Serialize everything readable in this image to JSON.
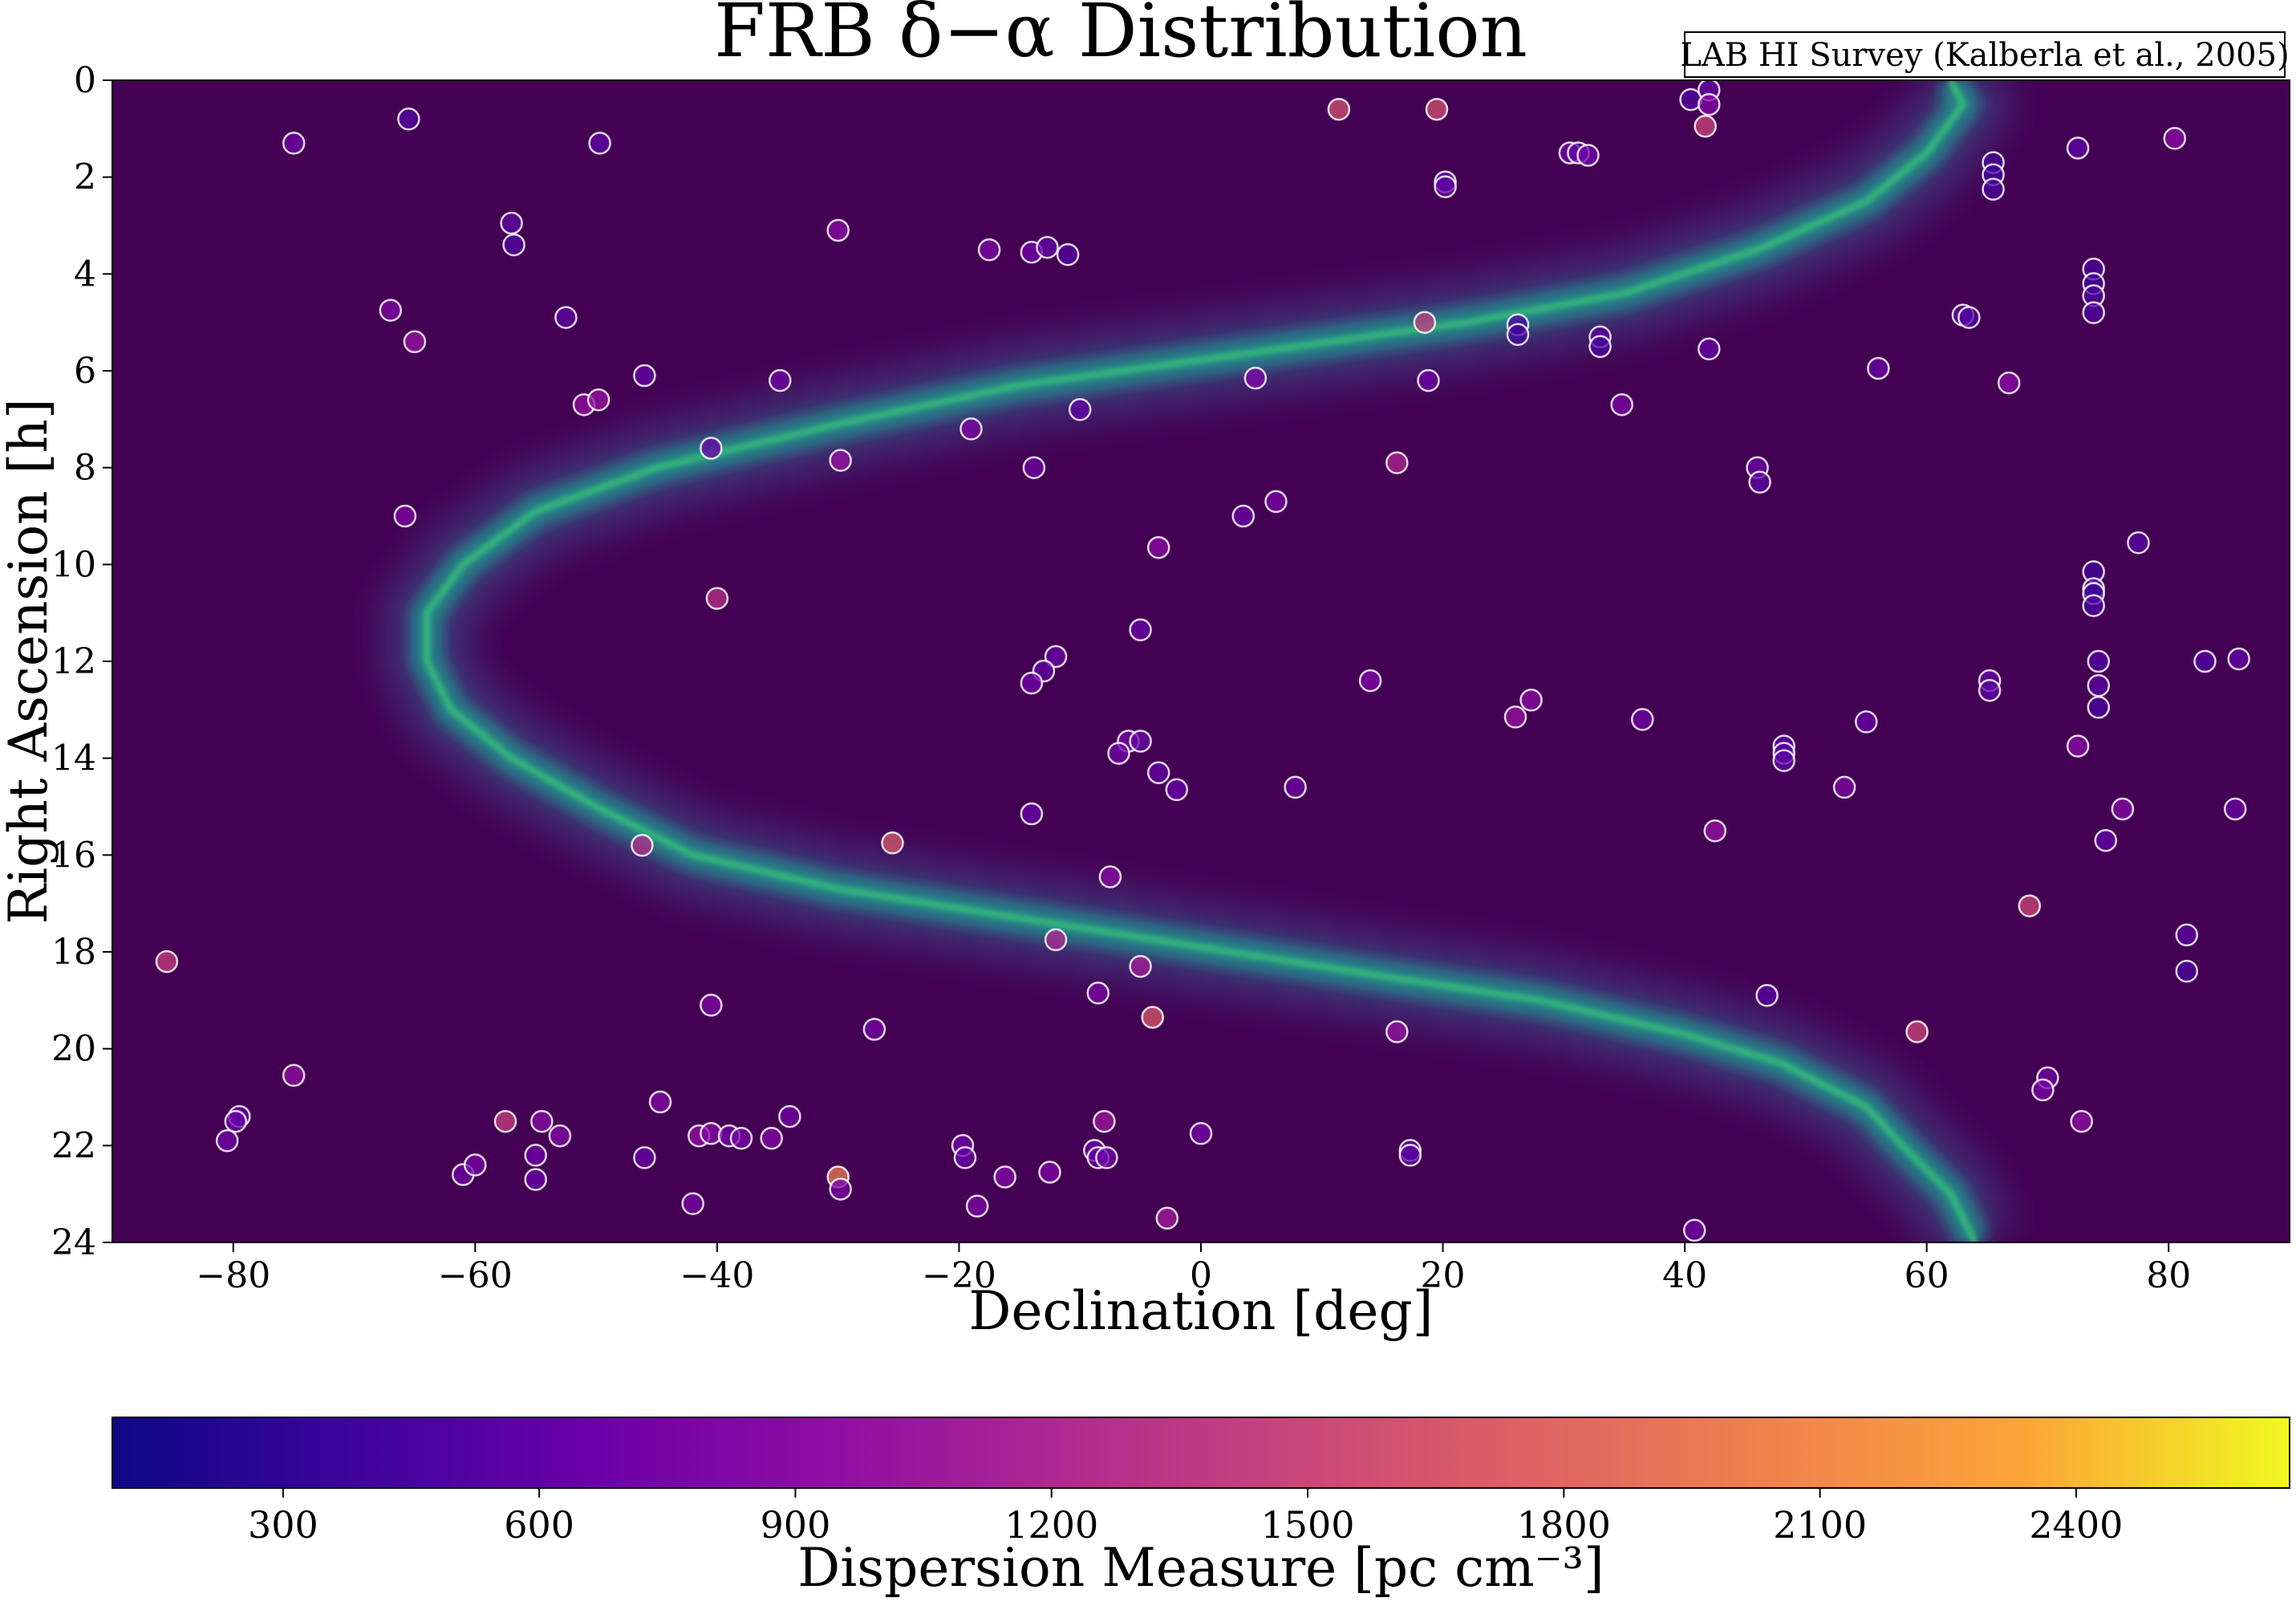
{
  "chart_data": {
    "type": "scatter",
    "title": "FRB δ−α Distribution",
    "xlabel": "Declination [deg]",
    "ylabel": "Right Ascension [h]",
    "xlim": [
      -90,
      90
    ],
    "ylim": [
      24,
      0
    ],
    "y_inverted": true,
    "x_ticks": [
      -80,
      -60,
      -40,
      -20,
      0,
      20,
      40,
      60,
      80
    ],
    "x_tick_labels": [
      "−80",
      "−60",
      "−40",
      "−20",
      "0",
      "20",
      "40",
      "60",
      "80"
    ],
    "y_ticks": [
      0,
      2,
      4,
      6,
      8,
      10,
      12,
      14,
      16,
      18,
      20,
      22,
      24
    ],
    "y_tick_labels": [
      "0",
      "2",
      "4",
      "6",
      "8",
      "10",
      "12",
      "14",
      "16",
      "18",
      "20",
      "22",
      "24"
    ],
    "grid": false,
    "annotation": "LAB HI Survey (Kalberla et al., 2005)",
    "background": {
      "description_source": "LAB HI Survey",
      "colormap": "viridis",
      "base_color": "#440154",
      "galactic_plane": [
        [
          62,
          0
        ],
        [
          63,
          0.5
        ],
        [
          60,
          1.5
        ],
        [
          55,
          2.5
        ],
        [
          46,
          3.5
        ],
        [
          35,
          4.4
        ],
        [
          22,
          5.0
        ],
        [
          5,
          5.6
        ],
        [
          -15,
          6.3
        ],
        [
          -30,
          7.1
        ],
        [
          -45,
          8.0
        ],
        [
          -55,
          8.9
        ],
        [
          -61,
          10.0
        ],
        [
          -64,
          11.0
        ],
        [
          -64,
          12.0
        ],
        [
          -62,
          13.0
        ],
        [
          -57,
          14.0
        ],
        [
          -50,
          15.0
        ],
        [
          -42,
          16.0
        ],
        [
          -30,
          16.7
        ],
        [
          -15,
          17.3
        ],
        [
          0,
          17.9
        ],
        [
          15,
          18.5
        ],
        [
          28,
          19.0
        ],
        [
          40,
          19.7
        ],
        [
          48,
          20.3
        ],
        [
          55,
          21.2
        ],
        [
          58,
          22.0
        ],
        [
          62,
          23.0
        ],
        [
          64,
          24.0
        ]
      ]
    },
    "colorbar": {
      "label": "Dispersion Measure [pc cm⁻³]",
      "colormap": "plasma",
      "range": [
        100,
        2650
      ],
      "ticks": [
        300,
        600,
        900,
        1200,
        1500,
        1800,
        2100,
        2400
      ],
      "tick_labels": [
        "300",
        "600",
        "900",
        "1200",
        "1500",
        "1800",
        "2100",
        "2400"
      ],
      "orientation": "horizontal"
    },
    "marker_edge_color": "#ffffff",
    "points": [
      {
        "dec": -65.5,
        "ra": 0.8,
        "dm": 500
      },
      {
        "dec": -75,
        "ra": 1.3,
        "dm": 700
      },
      {
        "dec": -49.7,
        "ra": 1.3,
        "dm": 600
      },
      {
        "dec": 11.4,
        "ra": 0.6,
        "dm": 1600
      },
      {
        "dec": 19.5,
        "ra": 0.6,
        "dm": 1600
      },
      {
        "dec": 40.5,
        "ra": 0.4,
        "dm": 500
      },
      {
        "dec": 42,
        "ra": 0.2,
        "dm": 650
      },
      {
        "dec": 42,
        "ra": 0.5,
        "dm": 850
      },
      {
        "dec": 41.7,
        "ra": 0.95,
        "dm": 1500
      },
      {
        "dec": 80.5,
        "ra": 1.2,
        "dm": 900
      },
      {
        "dec": 72.5,
        "ra": 1.4,
        "dm": 600
      },
      {
        "dec": 30.5,
        "ra": 1.5,
        "dm": 700
      },
      {
        "dec": 31.2,
        "ra": 1.5,
        "dm": 600
      },
      {
        "dec": 32,
        "ra": 1.55,
        "dm": 700
      },
      {
        "dec": 65.5,
        "ra": 1.7,
        "dm": 450
      },
      {
        "dec": 65.5,
        "ra": 1.95,
        "dm": 400
      },
      {
        "dec": 65.5,
        "ra": 2.25,
        "dm": 450
      },
      {
        "dec": 20.2,
        "ra": 2.1,
        "dm": 650
      },
      {
        "dec": 20.2,
        "ra": 2.2,
        "dm": 600
      },
      {
        "dec": -57,
        "ra": 2.95,
        "dm": 600
      },
      {
        "dec": -56.8,
        "ra": 3.4,
        "dm": 500
      },
      {
        "dec": -30,
        "ra": 3.1,
        "dm": 900
      },
      {
        "dec": -17.5,
        "ra": 3.5,
        "dm": 800
      },
      {
        "dec": -14,
        "ra": 3.55,
        "dm": 700
      },
      {
        "dec": -12.7,
        "ra": 3.45,
        "dm": 600
      },
      {
        "dec": -11,
        "ra": 3.6,
        "dm": 500
      },
      {
        "dec": 73.8,
        "ra": 3.9,
        "dm": 450
      },
      {
        "dec": 73.8,
        "ra": 4.2,
        "dm": 400
      },
      {
        "dec": 73.8,
        "ra": 4.45,
        "dm": 450
      },
      {
        "dec": 73.8,
        "ra": 4.8,
        "dm": 500
      },
      {
        "dec": -67,
        "ra": 4.75,
        "dm": 800
      },
      {
        "dec": -52.5,
        "ra": 4.9,
        "dm": 600
      },
      {
        "dec": -65,
        "ra": 5.4,
        "dm": 1000
      },
      {
        "dec": 18.5,
        "ra": 5.0,
        "dm": 1400
      },
      {
        "dec": 26.2,
        "ra": 5.05,
        "dm": 450
      },
      {
        "dec": 26.2,
        "ra": 5.25,
        "dm": 400
      },
      {
        "dec": 33,
        "ra": 5.3,
        "dm": 550
      },
      {
        "dec": 33,
        "ra": 5.5,
        "dm": 450
      },
      {
        "dec": 42,
        "ra": 5.55,
        "dm": 650
      },
      {
        "dec": 63,
        "ra": 4.85,
        "dm": 550
      },
      {
        "dec": 63.5,
        "ra": 4.9,
        "dm": 500
      },
      {
        "dec": -46,
        "ra": 6.1,
        "dm": 600
      },
      {
        "dec": -34.8,
        "ra": 6.2,
        "dm": 700
      },
      {
        "dec": 4.5,
        "ra": 6.15,
        "dm": 800
      },
      {
        "dec": 18.8,
        "ra": 6.2,
        "dm": 700
      },
      {
        "dec": 56,
        "ra": 5.95,
        "dm": 650
      },
      {
        "dec": 66.8,
        "ra": 6.25,
        "dm": 900
      },
      {
        "dec": -51,
        "ra": 6.7,
        "dm": 950
      },
      {
        "dec": -49.8,
        "ra": 6.6,
        "dm": 1000
      },
      {
        "dec": -10,
        "ra": 6.8,
        "dm": 600
      },
      {
        "dec": 34.8,
        "ra": 6.7,
        "dm": 800
      },
      {
        "dec": -40.5,
        "ra": 7.6,
        "dm": 650
      },
      {
        "dec": -19,
        "ra": 7.2,
        "dm": 800
      },
      {
        "dec": -29.8,
        "ra": 7.85,
        "dm": 1000
      },
      {
        "dec": -13.8,
        "ra": 8.0,
        "dm": 700
      },
      {
        "dec": 16.2,
        "ra": 7.9,
        "dm": 1200
      },
      {
        "dec": 46,
        "ra": 8.0,
        "dm": 650
      },
      {
        "dec": 46.2,
        "ra": 8.3,
        "dm": 550
      },
      {
        "dec": -65.8,
        "ra": 9.0,
        "dm": 800
      },
      {
        "dec": 3.5,
        "ra": 9.0,
        "dm": 650
      },
      {
        "dec": 6.2,
        "ra": 8.7,
        "dm": 750
      },
      {
        "dec": -3.5,
        "ra": 9.65,
        "dm": 900
      },
      {
        "dec": 77.5,
        "ra": 9.55,
        "dm": 550
      },
      {
        "dec": -40,
        "ra": 10.7,
        "dm": 1300
      },
      {
        "dec": 73.8,
        "ra": 10.15,
        "dm": 400
      },
      {
        "dec": 73.8,
        "ra": 10.5,
        "dm": 350
      },
      {
        "dec": 73.8,
        "ra": 10.6,
        "dm": 400
      },
      {
        "dec": 73.8,
        "ra": 10.85,
        "dm": 450
      },
      {
        "dec": -5,
        "ra": 11.35,
        "dm": 650
      },
      {
        "dec": -12,
        "ra": 11.9,
        "dm": 650
      },
      {
        "dec": -13,
        "ra": 12.2,
        "dm": 600
      },
      {
        "dec": -14,
        "ra": 12.45,
        "dm": 700
      },
      {
        "dec": 14,
        "ra": 12.4,
        "dm": 800
      },
      {
        "dec": 74.2,
        "ra": 12.0,
        "dm": 500
      },
      {
        "dec": 74.2,
        "ra": 12.5,
        "dm": 550
      },
      {
        "dec": 74.2,
        "ra": 12.95,
        "dm": 450
      },
      {
        "dec": 83,
        "ra": 12.0,
        "dm": 500
      },
      {
        "dec": 85.8,
        "ra": 11.95,
        "dm": 600
      },
      {
        "dec": 65.2,
        "ra": 12.4,
        "dm": 650
      },
      {
        "dec": 65.2,
        "ra": 12.6,
        "dm": 550
      },
      {
        "dec": 26,
        "ra": 13.15,
        "dm": 1000
      },
      {
        "dec": 27.3,
        "ra": 12.8,
        "dm": 900
      },
      {
        "dec": 36.5,
        "ra": 13.2,
        "dm": 700
      },
      {
        "dec": 55,
        "ra": 13.25,
        "dm": 650
      },
      {
        "dec": -6,
        "ra": 13.65,
        "dm": 750
      },
      {
        "dec": -5,
        "ra": 13.65,
        "dm": 650
      },
      {
        "dec": -6.8,
        "ra": 13.9,
        "dm": 700
      },
      {
        "dec": 48.2,
        "ra": 13.75,
        "dm": 550
      },
      {
        "dec": 48.2,
        "ra": 13.9,
        "dm": 500
      },
      {
        "dec": 48.2,
        "ra": 14.05,
        "dm": 550
      },
      {
        "dec": 72.5,
        "ra": 13.75,
        "dm": 900
      },
      {
        "dec": -3.5,
        "ra": 14.3,
        "dm": 600
      },
      {
        "dec": -2,
        "ra": 14.65,
        "dm": 650
      },
      {
        "dec": 7.8,
        "ra": 14.6,
        "dm": 700
      },
      {
        "dec": 53.2,
        "ra": 14.6,
        "dm": 800
      },
      {
        "dec": -14,
        "ra": 15.15,
        "dm": 650
      },
      {
        "dec": 76.2,
        "ra": 15.05,
        "dm": 850
      },
      {
        "dec": 85.5,
        "ra": 15.05,
        "dm": 650
      },
      {
        "dec": 74.8,
        "ra": 15.7,
        "dm": 600
      },
      {
        "dec": -46.2,
        "ra": 15.8,
        "dm": 1250
      },
      {
        "dec": -25.5,
        "ra": 15.75,
        "dm": 1700
      },
      {
        "dec": 42.5,
        "ra": 15.5,
        "dm": 1000
      },
      {
        "dec": -7.5,
        "ra": 16.45,
        "dm": 900
      },
      {
        "dec": 68.5,
        "ra": 17.05,
        "dm": 1500
      },
      {
        "dec": 81.5,
        "ra": 17.65,
        "dm": 550
      },
      {
        "dec": 81.5,
        "ra": 18.4,
        "dm": 450
      },
      {
        "dec": -85.5,
        "ra": 18.2,
        "dm": 1450
      },
      {
        "dec": -12,
        "ra": 17.75,
        "dm": 1200
      },
      {
        "dec": -5,
        "ra": 18.3,
        "dm": 1100
      },
      {
        "dec": -40.5,
        "ra": 19.1,
        "dm": 800
      },
      {
        "dec": -8.5,
        "ra": 18.85,
        "dm": 800
      },
      {
        "dec": -4,
        "ra": 19.35,
        "dm": 1700
      },
      {
        "dec": 46.8,
        "ra": 18.9,
        "dm": 550
      },
      {
        "dec": -27,
        "ra": 19.6,
        "dm": 750
      },
      {
        "dec": 16.2,
        "ra": 19.65,
        "dm": 1000
      },
      {
        "dec": 59.2,
        "ra": 19.65,
        "dm": 1500
      },
      {
        "dec": -75,
        "ra": 20.55,
        "dm": 950
      },
      {
        "dec": 70,
        "ra": 20.6,
        "dm": 700
      },
      {
        "dec": 69.6,
        "ra": 20.85,
        "dm": 750
      },
      {
        "dec": -44.7,
        "ra": 21.1,
        "dm": 850
      },
      {
        "dec": -79.5,
        "ra": 21.4,
        "dm": 600
      },
      {
        "dec": -79.8,
        "ra": 21.5,
        "dm": 650
      },
      {
        "dec": -80.5,
        "ra": 21.9,
        "dm": 700
      },
      {
        "dec": -57.5,
        "ra": 21.5,
        "dm": 1450
      },
      {
        "dec": -54.5,
        "ra": 21.5,
        "dm": 900
      },
      {
        "dec": -53,
        "ra": 21.8,
        "dm": 850
      },
      {
        "dec": -55,
        "ra": 22.2,
        "dm": 700
      },
      {
        "dec": -55,
        "ra": 22.7,
        "dm": 650
      },
      {
        "dec": -61,
        "ra": 22.6,
        "dm": 700
      },
      {
        "dec": -60,
        "ra": 22.4,
        "dm": 750
      },
      {
        "dec": -46,
        "ra": 22.25,
        "dm": 650
      },
      {
        "dec": -41.5,
        "ra": 21.8,
        "dm": 950
      },
      {
        "dec": -40.5,
        "ra": 21.75,
        "dm": 850
      },
      {
        "dec": -39,
        "ra": 21.8,
        "dm": 700
      },
      {
        "dec": -38,
        "ra": 21.85,
        "dm": 750
      },
      {
        "dec": -35.5,
        "ra": 21.85,
        "dm": 850
      },
      {
        "dec": -34,
        "ra": 21.4,
        "dm": 700
      },
      {
        "dec": -42,
        "ra": 23.2,
        "dm": 750
      },
      {
        "dec": -30,
        "ra": 22.65,
        "dm": 2000
      },
      {
        "dec": -29.8,
        "ra": 22.9,
        "dm": 750
      },
      {
        "dec": -19.7,
        "ra": 22.0,
        "dm": 700
      },
      {
        "dec": -19.5,
        "ra": 22.25,
        "dm": 650
      },
      {
        "dec": -16.2,
        "ra": 22.65,
        "dm": 850
      },
      {
        "dec": -18.5,
        "ra": 23.25,
        "dm": 800
      },
      {
        "dec": -12.5,
        "ra": 22.55,
        "dm": 800
      },
      {
        "dec": -8.8,
        "ra": 22.1,
        "dm": 650
      },
      {
        "dec": -8.5,
        "ra": 22.25,
        "dm": 600
      },
      {
        "dec": -7.8,
        "ra": 22.25,
        "dm": 700
      },
      {
        "dec": -8,
        "ra": 21.5,
        "dm": 1050
      },
      {
        "dec": 0,
        "ra": 21.75,
        "dm": 750
      },
      {
        "dec": -2.8,
        "ra": 23.5,
        "dm": 1100
      },
      {
        "dec": 17.3,
        "ra": 22.1,
        "dm": 500
      },
      {
        "dec": 17.3,
        "ra": 22.2,
        "dm": 550
      },
      {
        "dec": 40.8,
        "ra": 23.75,
        "dm": 700
      },
      {
        "dec": 72.8,
        "ra": 21.5,
        "dm": 950
      }
    ]
  }
}
